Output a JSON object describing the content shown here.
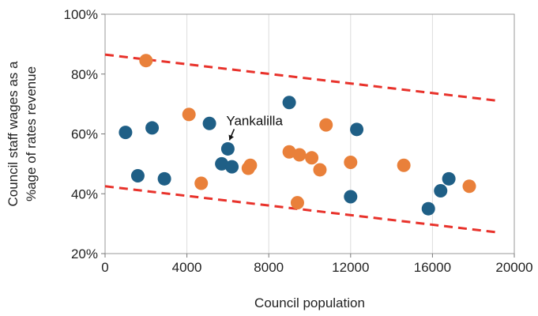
{
  "chart_data": {
    "type": "scatter",
    "title": "",
    "xlabel": "Council population",
    "ylabel_lines": [
      "Council staff wages as a",
      "%age of rates revenue"
    ],
    "xlim": [
      0,
      20000
    ],
    "ylim": [
      20,
      100
    ],
    "x_ticks": [
      0,
      4000,
      8000,
      12000,
      16000,
      20000
    ],
    "x_tick_labels": [
      "0",
      "4000",
      "8000",
      "12000",
      "16000",
      "20000"
    ],
    "y_ticks": [
      20,
      40,
      60,
      80,
      100
    ],
    "y_tick_labels": [
      "20%",
      "40%",
      "60%",
      "80%",
      "100%"
    ],
    "grid": "vertical",
    "legend": "none",
    "series": [
      {
        "color": "#1f5f86",
        "points": [
          {
            "x": 1000,
            "y": 60.5
          },
          {
            "x": 1600,
            "y": 46
          },
          {
            "x": 2300,
            "y": 62
          },
          {
            "x": 2900,
            "y": 45
          },
          {
            "x": 5100,
            "y": 63.5
          },
          {
            "x": 5700,
            "y": 50
          },
          {
            "x": 6000,
            "y": 55
          },
          {
            "x": 6200,
            "y": 49
          },
          {
            "x": 9000,
            "y": 70.5
          },
          {
            "x": 12000,
            "y": 39
          },
          {
            "x": 12300,
            "y": 61.5
          },
          {
            "x": 15800,
            "y": 35
          },
          {
            "x": 16400,
            "y": 41
          },
          {
            "x": 16800,
            "y": 45
          }
        ]
      },
      {
        "color": "#e9803a",
        "points": [
          {
            "x": 2000,
            "y": 84.5
          },
          {
            "x": 4100,
            "y": 66.5
          },
          {
            "x": 4700,
            "y": 43.5
          },
          {
            "x": 7000,
            "y": 48.5
          },
          {
            "x": 7100,
            "y": 49.5
          },
          {
            "x": 9000,
            "y": 54
          },
          {
            "x": 9400,
            "y": 37
          },
          {
            "x": 9500,
            "y": 53
          },
          {
            "x": 10100,
            "y": 52
          },
          {
            "x": 10500,
            "y": 48
          },
          {
            "x": 10800,
            "y": 63
          },
          {
            "x": 12000,
            "y": 50.5
          },
          {
            "x": 14600,
            "y": 49.5
          },
          {
            "x": 17800,
            "y": 42.5
          }
        ]
      }
    ],
    "trend_lines": [
      {
        "x": [
          0,
          19300
        ],
        "y": [
          86.5,
          71
        ],
        "color": "#e8322b",
        "style": "dashed"
      },
      {
        "x": [
          0,
          19300
        ],
        "y": [
          42.5,
          27
        ],
        "color": "#e8322b",
        "style": "dashed"
      }
    ],
    "annotation": {
      "text": "Yankalilla",
      "x": 6000,
      "y": 55
    }
  }
}
